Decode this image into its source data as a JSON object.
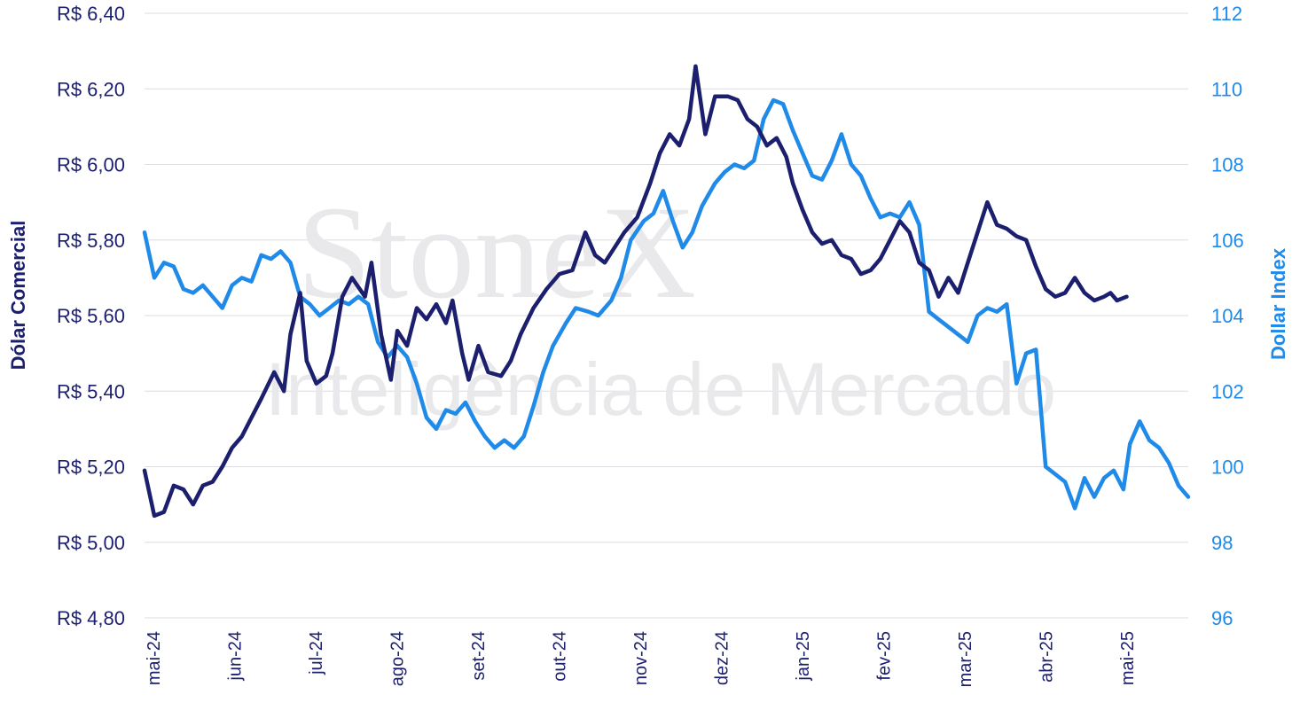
{
  "watermark": {
    "brand": "StoneX",
    "subtitle": "Inteligência de Mercado"
  },
  "chart_data": {
    "type": "line",
    "grid": true,
    "x": {
      "ticks": [
        "mai-24",
        "jun-24",
        "jul-24",
        "ago-24",
        "set-24",
        "out-24",
        "nov-24",
        "dez-24",
        "jan-25",
        "fev-25",
        "mar-25",
        "abr-25",
        "mai-25"
      ],
      "start": "mai-24",
      "end": "mai-25"
    },
    "y_left": {
      "label": "Dólar Comercial",
      "range": [
        4.8,
        6.4
      ],
      "ticks": [
        "R$ 4,80",
        "R$ 5,00",
        "R$ 5,20",
        "R$ 5,40",
        "R$ 5,60",
        "R$ 5,80",
        "R$ 6,00",
        "R$ 6,20",
        "R$ 6,40"
      ],
      "color": "#1b1f6e"
    },
    "y_right": {
      "label": "Dollar Index",
      "range": [
        96,
        112
      ],
      "ticks": [
        "96",
        "98",
        "100",
        "102",
        "104",
        "106",
        "108",
        "110",
        "112"
      ],
      "color": "#1f8ae8"
    },
    "series": [
      {
        "name": "Dólar Comercial",
        "axis": "left",
        "color": "#1b1f6e",
        "points": [
          [
            0.0,
            5.19
          ],
          [
            0.3,
            5.07
          ],
          [
            0.6,
            5.08
          ],
          [
            0.9,
            5.15
          ],
          [
            1.2,
            5.14
          ],
          [
            1.5,
            5.1
          ],
          [
            1.8,
            5.15
          ],
          [
            2.1,
            5.16
          ],
          [
            2.4,
            5.2
          ],
          [
            2.7,
            5.25
          ],
          [
            3.0,
            5.28
          ],
          [
            3.3,
            5.33
          ],
          [
            3.6,
            5.38
          ],
          [
            4.0,
            5.45
          ],
          [
            4.3,
            5.4
          ],
          [
            4.5,
            5.55
          ],
          [
            4.8,
            5.66
          ],
          [
            5.0,
            5.48
          ],
          [
            5.3,
            5.42
          ],
          [
            5.6,
            5.44
          ],
          [
            5.8,
            5.5
          ],
          [
            6.1,
            5.65
          ],
          [
            6.4,
            5.7
          ],
          [
            6.8,
            5.65
          ],
          [
            7.0,
            5.74
          ],
          [
            7.3,
            5.55
          ],
          [
            7.6,
            5.43
          ],
          [
            7.8,
            5.56
          ],
          [
            8.1,
            5.52
          ],
          [
            8.4,
            5.62
          ],
          [
            8.7,
            5.59
          ],
          [
            9.0,
            5.63
          ],
          [
            9.3,
            5.58
          ],
          [
            9.5,
            5.64
          ],
          [
            9.8,
            5.5
          ],
          [
            10.0,
            5.43
          ],
          [
            10.3,
            5.52
          ],
          [
            10.6,
            5.45
          ],
          [
            11.0,
            5.44
          ],
          [
            11.3,
            5.48
          ],
          [
            11.6,
            5.55
          ],
          [
            12.0,
            5.62
          ],
          [
            12.4,
            5.67
          ],
          [
            12.8,
            5.71
          ],
          [
            13.2,
            5.72
          ],
          [
            13.6,
            5.82
          ],
          [
            13.9,
            5.76
          ],
          [
            14.2,
            5.74
          ],
          [
            14.5,
            5.78
          ],
          [
            14.8,
            5.82
          ],
          [
            15.2,
            5.86
          ],
          [
            15.6,
            5.95
          ],
          [
            15.9,
            6.03
          ],
          [
            16.2,
            6.08
          ],
          [
            16.5,
            6.05
          ],
          [
            16.8,
            6.12
          ],
          [
            17.0,
            6.26
          ],
          [
            17.3,
            6.08
          ],
          [
            17.6,
            6.18
          ],
          [
            18.0,
            6.18
          ],
          [
            18.3,
            6.17
          ],
          [
            18.6,
            6.12
          ],
          [
            18.9,
            6.1
          ],
          [
            19.2,
            6.05
          ],
          [
            19.5,
            6.07
          ],
          [
            19.8,
            6.02
          ],
          [
            20.0,
            5.95
          ],
          [
            20.3,
            5.88
          ],
          [
            20.6,
            5.82
          ],
          [
            20.9,
            5.79
          ],
          [
            21.2,
            5.8
          ],
          [
            21.5,
            5.76
          ],
          [
            21.8,
            5.75
          ],
          [
            22.1,
            5.71
          ],
          [
            22.4,
            5.72
          ],
          [
            22.7,
            5.75
          ],
          [
            23.0,
            5.8
          ],
          [
            23.3,
            5.85
          ],
          [
            23.6,
            5.82
          ],
          [
            23.9,
            5.74
          ],
          [
            24.2,
            5.72
          ],
          [
            24.5,
            5.65
          ],
          [
            24.8,
            5.7
          ],
          [
            25.1,
            5.66
          ],
          [
            25.4,
            5.74
          ],
          [
            25.7,
            5.82
          ],
          [
            26.0,
            5.9
          ],
          [
            26.3,
            5.84
          ],
          [
            26.6,
            5.83
          ],
          [
            26.9,
            5.81
          ],
          [
            27.2,
            5.8
          ],
          [
            27.5,
            5.73
          ],
          [
            27.8,
            5.67
          ],
          [
            28.1,
            5.65
          ],
          [
            28.4,
            5.66
          ],
          [
            28.7,
            5.7
          ],
          [
            29.0,
            5.66
          ],
          [
            29.3,
            5.64
          ],
          [
            29.6,
            5.65
          ],
          [
            29.8,
            5.66
          ],
          [
            30.0,
            5.64
          ],
          [
            30.3,
            5.65
          ]
        ]
      },
      {
        "name": "Dollar Index",
        "axis": "right",
        "color": "#1f8ae8",
        "points": [
          [
            0.0,
            106.2
          ],
          [
            0.3,
            105.0
          ],
          [
            0.6,
            105.4
          ],
          [
            0.9,
            105.3
          ],
          [
            1.2,
            104.7
          ],
          [
            1.5,
            104.6
          ],
          [
            1.8,
            104.8
          ],
          [
            2.1,
            104.5
          ],
          [
            2.4,
            104.2
          ],
          [
            2.7,
            104.8
          ],
          [
            3.0,
            105.0
          ],
          [
            3.3,
            104.9
          ],
          [
            3.6,
            105.6
          ],
          [
            3.9,
            105.5
          ],
          [
            4.2,
            105.7
          ],
          [
            4.5,
            105.4
          ],
          [
            4.8,
            104.5
          ],
          [
            5.1,
            104.3
          ],
          [
            5.4,
            104.0
          ],
          [
            5.7,
            104.2
          ],
          [
            6.0,
            104.4
          ],
          [
            6.3,
            104.3
          ],
          [
            6.6,
            104.5
          ],
          [
            6.9,
            104.3
          ],
          [
            7.2,
            103.3
          ],
          [
            7.5,
            102.9
          ],
          [
            7.8,
            103.2
          ],
          [
            8.1,
            102.9
          ],
          [
            8.4,
            102.2
          ],
          [
            8.7,
            101.3
          ],
          [
            9.0,
            101.0
          ],
          [
            9.3,
            101.5
          ],
          [
            9.6,
            101.4
          ],
          [
            9.9,
            101.7
          ],
          [
            10.2,
            101.2
          ],
          [
            10.5,
            100.8
          ],
          [
            10.8,
            100.5
          ],
          [
            11.1,
            100.7
          ],
          [
            11.4,
            100.5
          ],
          [
            11.7,
            100.8
          ],
          [
            12.0,
            101.6
          ],
          [
            12.3,
            102.5
          ],
          [
            12.6,
            103.2
          ],
          [
            13.0,
            103.8
          ],
          [
            13.3,
            104.2
          ],
          [
            13.7,
            104.1
          ],
          [
            14.0,
            104.0
          ],
          [
            14.4,
            104.4
          ],
          [
            14.7,
            105.0
          ],
          [
            15.0,
            106.0
          ],
          [
            15.4,
            106.5
          ],
          [
            15.7,
            106.7
          ],
          [
            16.0,
            107.3
          ],
          [
            16.3,
            106.5
          ],
          [
            16.6,
            105.8
          ],
          [
            16.9,
            106.2
          ],
          [
            17.2,
            106.9
          ],
          [
            17.6,
            107.5
          ],
          [
            17.9,
            107.8
          ],
          [
            18.2,
            108.0
          ],
          [
            18.5,
            107.9
          ],
          [
            18.8,
            108.1
          ],
          [
            19.1,
            109.2
          ],
          [
            19.4,
            109.7
          ],
          [
            19.7,
            109.6
          ],
          [
            20.0,
            108.9
          ],
          [
            20.3,
            108.3
          ],
          [
            20.6,
            107.7
          ],
          [
            20.9,
            107.6
          ],
          [
            21.2,
            108.1
          ],
          [
            21.5,
            108.8
          ],
          [
            21.8,
            108.0
          ],
          [
            22.1,
            107.7
          ],
          [
            22.4,
            107.1
          ],
          [
            22.7,
            106.6
          ],
          [
            23.0,
            106.7
          ],
          [
            23.3,
            106.6
          ],
          [
            23.6,
            107.0
          ],
          [
            23.9,
            106.4
          ],
          [
            24.2,
            104.1
          ],
          [
            24.5,
            103.9
          ],
          [
            24.8,
            103.7
          ],
          [
            25.1,
            103.5
          ],
          [
            25.4,
            103.3
          ],
          [
            25.7,
            104.0
          ],
          [
            26.0,
            104.2
          ],
          [
            26.3,
            104.1
          ],
          [
            26.6,
            104.3
          ],
          [
            26.9,
            102.2
          ],
          [
            27.2,
            103.0
          ],
          [
            27.5,
            103.1
          ],
          [
            27.8,
            100.0
          ],
          [
            28.1,
            99.8
          ],
          [
            28.4,
            99.6
          ],
          [
            28.7,
            98.9
          ],
          [
            29.0,
            99.7
          ],
          [
            29.3,
            99.2
          ],
          [
            29.6,
            99.7
          ],
          [
            29.9,
            99.9
          ],
          [
            30.2,
            99.4
          ],
          [
            30.4,
            100.6
          ],
          [
            30.7,
            101.2
          ],
          [
            31.0,
            100.7
          ],
          [
            31.3,
            100.5
          ],
          [
            31.6,
            100.1
          ],
          [
            31.9,
            99.5
          ],
          [
            32.2,
            99.2
          ]
        ]
      }
    ]
  }
}
